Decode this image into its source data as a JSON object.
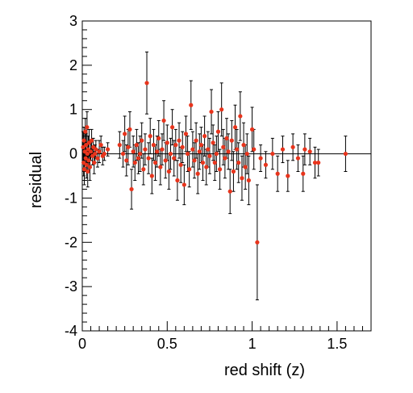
{
  "chart_data": {
    "type": "scatter",
    "title": "",
    "xlabel": "red shift (z)",
    "ylabel": "residual",
    "xlim": [
      0,
      1.7
    ],
    "ylim": [
      -4,
      3
    ],
    "x_ticks": [
      0,
      0.5,
      1,
      1.5
    ],
    "x_tick_labels": [
      "0",
      "0.5",
      "1",
      "1.5"
    ],
    "y_ticks": [
      -4,
      -3,
      -2,
      -1,
      0,
      1,
      2,
      3
    ],
    "y_tick_labels": [
      "-4",
      "-3",
      "-2",
      "-1",
      "0",
      "1",
      "2",
      "3"
    ],
    "reference_line": 0,
    "grid": false,
    "legend": "none",
    "colors": {
      "marker": "#e8341c",
      "errorbar": "#000000",
      "axis": "#000000"
    },
    "points": [
      {
        "x": 0.005,
        "y": 0.15,
        "err": 0.35
      },
      {
        "x": 0.008,
        "y": -0.2,
        "err": 0.3
      },
      {
        "x": 0.01,
        "y": 0.3,
        "err": 0.3
      },
      {
        "x": 0.012,
        "y": -0.35,
        "err": 0.35
      },
      {
        "x": 0.015,
        "y": 0.05,
        "err": 0.25
      },
      {
        "x": 0.018,
        "y": 0.5,
        "err": 0.3
      },
      {
        "x": 0.02,
        "y": -0.1,
        "err": 0.3
      },
      {
        "x": 0.022,
        "y": 0.2,
        "err": 0.25
      },
      {
        "x": 0.025,
        "y": -0.25,
        "err": 0.3
      },
      {
        "x": 0.028,
        "y": 0.6,
        "err": 0.35
      },
      {
        "x": 0.03,
        "y": 0.0,
        "err": 0.2
      },
      {
        "x": 0.032,
        "y": -0.4,
        "err": 0.35
      },
      {
        "x": 0.035,
        "y": 0.1,
        "err": 0.3
      },
      {
        "x": 0.038,
        "y": -0.15,
        "err": 0.25
      },
      {
        "x": 0.04,
        "y": 0.25,
        "err": 0.3
      },
      {
        "x": 0.045,
        "y": -0.3,
        "err": 0.3
      },
      {
        "x": 0.05,
        "y": 0.05,
        "err": 0.2
      },
      {
        "x": 0.055,
        "y": 0.3,
        "err": 0.25
      },
      {
        "x": 0.06,
        "y": -0.05,
        "err": 0.2
      },
      {
        "x": 0.065,
        "y": 0.15,
        "err": 0.2
      },
      {
        "x": 0.07,
        "y": -0.2,
        "err": 0.25
      },
      {
        "x": 0.075,
        "y": 0.0,
        "err": 0.2
      },
      {
        "x": 0.08,
        "y": 0.1,
        "err": 0.2
      },
      {
        "x": 0.09,
        "y": -0.1,
        "err": 0.2
      },
      {
        "x": 0.1,
        "y": 0.05,
        "err": 0.25
      },
      {
        "x": 0.11,
        "y": 0.2,
        "err": 0.2
      },
      {
        "x": 0.12,
        "y": -0.05,
        "err": 0.2
      },
      {
        "x": 0.13,
        "y": 0.0,
        "err": 0.15
      },
      {
        "x": 0.15,
        "y": 0.1,
        "err": 0.15
      },
      {
        "x": 0.22,
        "y": 0.2,
        "err": 0.3
      },
      {
        "x": 0.24,
        "y": 0.0,
        "err": 0.3
      },
      {
        "x": 0.25,
        "y": 0.45,
        "err": 0.4
      },
      {
        "x": 0.26,
        "y": -0.15,
        "err": 0.35
      },
      {
        "x": 0.27,
        "y": 0.15,
        "err": 0.4
      },
      {
        "x": 0.28,
        "y": 0.55,
        "err": 0.4
      },
      {
        "x": 0.29,
        "y": -0.8,
        "err": 0.45
      },
      {
        "x": 0.3,
        "y": 0.05,
        "err": 0.35
      },
      {
        "x": 0.31,
        "y": -0.2,
        "err": 0.4
      },
      {
        "x": 0.32,
        "y": 0.2,
        "err": 0.35
      },
      {
        "x": 0.33,
        "y": -0.1,
        "err": 0.35
      },
      {
        "x": 0.34,
        "y": 0.0,
        "err": 0.4
      },
      {
        "x": 0.35,
        "y": 0.3,
        "err": 0.4
      },
      {
        "x": 0.36,
        "y": -0.35,
        "err": 0.35
      },
      {
        "x": 0.37,
        "y": 0.1,
        "err": 0.35
      },
      {
        "x": 0.38,
        "y": 1.6,
        "err": 0.7
      },
      {
        "x": 0.39,
        "y": -0.1,
        "err": 0.35
      },
      {
        "x": 0.4,
        "y": 0.4,
        "err": 0.4
      },
      {
        "x": 0.41,
        "y": -0.5,
        "err": 0.4
      },
      {
        "x": 0.42,
        "y": 0.2,
        "err": 0.35
      },
      {
        "x": 0.43,
        "y": -0.2,
        "err": 0.4
      },
      {
        "x": 0.44,
        "y": 0.05,
        "err": 0.35
      },
      {
        "x": 0.45,
        "y": 0.35,
        "err": 0.4
      },
      {
        "x": 0.46,
        "y": -0.3,
        "err": 0.4
      },
      {
        "x": 0.47,
        "y": 0.1,
        "err": 0.35
      },
      {
        "x": 0.48,
        "y": 0.75,
        "err": 0.45
      },
      {
        "x": 0.49,
        "y": -0.15,
        "err": 0.4
      },
      {
        "x": 0.5,
        "y": 0.25,
        "err": 0.4
      },
      {
        "x": 0.51,
        "y": -0.4,
        "err": 0.4
      },
      {
        "x": 0.52,
        "y": 0.0,
        "err": 0.35
      },
      {
        "x": 0.53,
        "y": 0.6,
        "err": 0.4
      },
      {
        "x": 0.54,
        "y": -0.1,
        "err": 0.4
      },
      {
        "x": 0.55,
        "y": 0.2,
        "err": 0.35
      },
      {
        "x": 0.56,
        "y": -0.6,
        "err": 0.45
      },
      {
        "x": 0.57,
        "y": 0.3,
        "err": 0.4
      },
      {
        "x": 0.58,
        "y": -0.25,
        "err": 0.4
      },
      {
        "x": 0.59,
        "y": 0.15,
        "err": 0.35
      },
      {
        "x": 0.6,
        "y": -0.7,
        "err": 0.45
      },
      {
        "x": 0.61,
        "y": 0.45,
        "err": 0.4
      },
      {
        "x": 0.62,
        "y": 0.0,
        "err": 0.4
      },
      {
        "x": 0.63,
        "y": -0.35,
        "err": 0.4
      },
      {
        "x": 0.64,
        "y": 1.1,
        "err": 0.55
      },
      {
        "x": 0.65,
        "y": 0.1,
        "err": 0.4
      },
      {
        "x": 0.66,
        "y": -0.15,
        "err": 0.4
      },
      {
        "x": 0.67,
        "y": 0.3,
        "err": 0.4
      },
      {
        "x": 0.68,
        "y": -0.45,
        "err": 0.45
      },
      {
        "x": 0.69,
        "y": 0.05,
        "err": 0.4
      },
      {
        "x": 0.7,
        "y": 0.2,
        "err": 0.4
      },
      {
        "x": 0.71,
        "y": -0.2,
        "err": 0.4
      },
      {
        "x": 0.72,
        "y": 0.4,
        "err": 0.45
      },
      {
        "x": 0.73,
        "y": -0.3,
        "err": 0.4
      },
      {
        "x": 0.74,
        "y": 0.1,
        "err": 0.4
      },
      {
        "x": 0.75,
        "y": -0.05,
        "err": 0.4
      },
      {
        "x": 0.76,
        "y": 0.95,
        "err": 0.5
      },
      {
        "x": 0.77,
        "y": 0.25,
        "err": 0.4
      },
      {
        "x": 0.78,
        "y": -0.2,
        "err": 0.4
      },
      {
        "x": 0.79,
        "y": 0.0,
        "err": 0.4
      },
      {
        "x": 0.8,
        "y": 0.5,
        "err": 0.45
      },
      {
        "x": 0.81,
        "y": -0.35,
        "err": 0.45
      },
      {
        "x": 0.82,
        "y": 1.0,
        "err": 0.6
      },
      {
        "x": 0.83,
        "y": 0.15,
        "err": 0.4
      },
      {
        "x": 0.84,
        "y": -0.1,
        "err": 0.45
      },
      {
        "x": 0.85,
        "y": 0.35,
        "err": 0.45
      },
      {
        "x": 0.86,
        "y": 0.05,
        "err": 0.4
      },
      {
        "x": 0.87,
        "y": -0.85,
        "err": 0.5
      },
      {
        "x": 0.88,
        "y": 0.3,
        "err": 0.45
      },
      {
        "x": 0.89,
        "y": -0.4,
        "err": 0.45
      },
      {
        "x": 0.9,
        "y": 0.6,
        "err": 0.5
      },
      {
        "x": 0.91,
        "y": 0.1,
        "err": 0.45
      },
      {
        "x": 0.92,
        "y": -0.2,
        "err": 0.45
      },
      {
        "x": 0.93,
        "y": 0.85,
        "err": 0.55
      },
      {
        "x": 0.94,
        "y": -0.55,
        "err": 0.5
      },
      {
        "x": 0.95,
        "y": 0.2,
        "err": 0.5
      },
      {
        "x": 0.96,
        "y": -0.3,
        "err": 0.5
      },
      {
        "x": 0.97,
        "y": 0.0,
        "err": 0.45
      },
      {
        "x": 0.98,
        "y": -0.6,
        "err": 0.55
      },
      {
        "x": 1.0,
        "y": 0.55,
        "err": 0.5
      },
      {
        "x": 1.01,
        "y": 0.1,
        "err": 0.45
      },
      {
        "x": 1.03,
        "y": -2.0,
        "err": 1.3
      },
      {
        "x": 1.05,
        "y": -0.1,
        "err": 0.3
      },
      {
        "x": 1.08,
        "y": -0.25,
        "err": 0.3
      },
      {
        "x": 1.12,
        "y": 0.0,
        "err": 0.35
      },
      {
        "x": 1.15,
        "y": -0.45,
        "err": 0.4
      },
      {
        "x": 1.18,
        "y": 0.1,
        "err": 0.3
      },
      {
        "x": 1.21,
        "y": -0.5,
        "err": 0.35
      },
      {
        "x": 1.24,
        "y": 0.15,
        "err": 0.3
      },
      {
        "x": 1.27,
        "y": -0.1,
        "err": 0.3
      },
      {
        "x": 1.3,
        "y": -0.45,
        "err": 0.4
      },
      {
        "x": 1.31,
        "y": 0.1,
        "err": 0.35
      },
      {
        "x": 1.34,
        "y": 0.05,
        "err": 0.3
      },
      {
        "x": 1.37,
        "y": -0.2,
        "err": 0.35
      },
      {
        "x": 1.39,
        "y": -0.2,
        "err": 0.3
      },
      {
        "x": 1.55,
        "y": 0.0,
        "err": 0.4
      }
    ]
  }
}
